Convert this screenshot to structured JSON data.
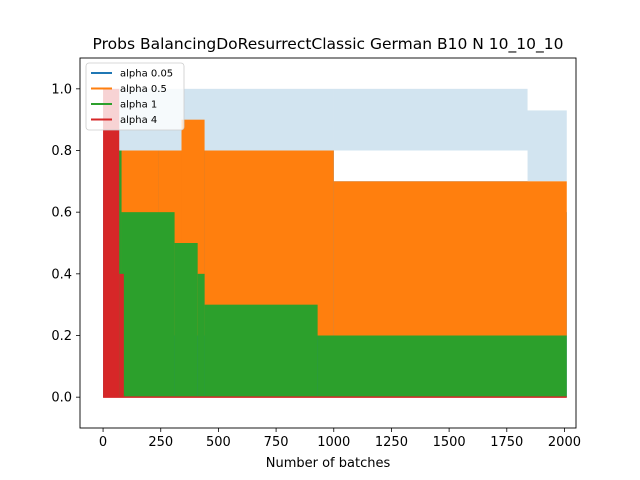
{
  "chart_data": {
    "type": "area",
    "title": "Probs BalancingDoResurrectClassic German B10 N 10_10_10",
    "xlabel": "Number of batches",
    "ylabel": "",
    "xlim": [
      -100,
      2050
    ],
    "ylim": [
      -0.1,
      1.1
    ],
    "xticks": [
      0,
      250,
      500,
      750,
      1000,
      1250,
      1500,
      1750,
      2000
    ],
    "yticks": [
      0.0,
      0.2,
      0.4,
      0.6,
      0.8,
      1.0
    ],
    "xtick_labels": [
      "0",
      "250",
      "500",
      "750",
      "1000",
      "1250",
      "1500",
      "1750",
      "2000"
    ],
    "ytick_labels": [
      "0.0",
      "0.2",
      "0.4",
      "0.6",
      "0.8",
      "1.0"
    ],
    "grid": false,
    "legend_position": "top-left",
    "series": [
      {
        "name": "alpha 0.05",
        "color": "#1f77b4",
        "steps": [
          {
            "x0": 0,
            "x1": 1000,
            "lo": 0.0,
            "hi": 0.8
          },
          {
            "x0": 1000,
            "x1": 1840,
            "lo": 0.0,
            "hi": 0.7
          },
          {
            "x0": 1840,
            "x1": 2010,
            "lo": 0.0,
            "hi": 0.6
          }
        ],
        "upper": [
          {
            "x0": 0,
            "x1": 1000,
            "hi": 0.8,
            "top": 1.0
          },
          {
            "x0": 1000,
            "x1": 1840,
            "hi": 0.8,
            "top": 1.0
          },
          {
            "x0": 1840,
            "x1": 2010,
            "hi": 0.7,
            "top": 0.93
          }
        ]
      },
      {
        "name": "alpha 0.5",
        "color": "#ff7f0e",
        "steps": [
          {
            "x0": 80,
            "x1": 240,
            "lo": 0.2,
            "hi": 0.8
          },
          {
            "x0": 240,
            "x1": 340,
            "lo": 0.2,
            "hi": 0.8
          },
          {
            "x0": 340,
            "x1": 440,
            "lo": 0.2,
            "hi": 0.9
          },
          {
            "x0": 440,
            "x1": 1000,
            "lo": 0.2,
            "hi": 0.8
          },
          {
            "x0": 1000,
            "x1": 2010,
            "lo": 0.2,
            "hi": 0.7
          }
        ]
      },
      {
        "name": "alpha 1",
        "color": "#2ca02c",
        "steps": [
          {
            "x0": 60,
            "x1": 80,
            "lo": 0.0,
            "hi": 0.8
          },
          {
            "x0": 80,
            "x1": 310,
            "lo": 0.0,
            "hi": 0.6
          },
          {
            "x0": 310,
            "x1": 410,
            "lo": 0.0,
            "hi": 0.5
          },
          {
            "x0": 410,
            "x1": 440,
            "lo": 0.0,
            "hi": 0.4
          },
          {
            "x0": 440,
            "x1": 930,
            "lo": 0.0,
            "hi": 0.3
          },
          {
            "x0": 930,
            "x1": 2010,
            "lo": 0.0,
            "hi": 0.2
          }
        ]
      },
      {
        "name": "alpha 4",
        "color": "#d62728",
        "steps": [
          {
            "x0": 0,
            "x1": 70,
            "lo": 0.0,
            "hi": 1.0
          },
          {
            "x0": 70,
            "x1": 90,
            "lo": 0.0,
            "hi": 0.4
          }
        ]
      }
    ]
  }
}
